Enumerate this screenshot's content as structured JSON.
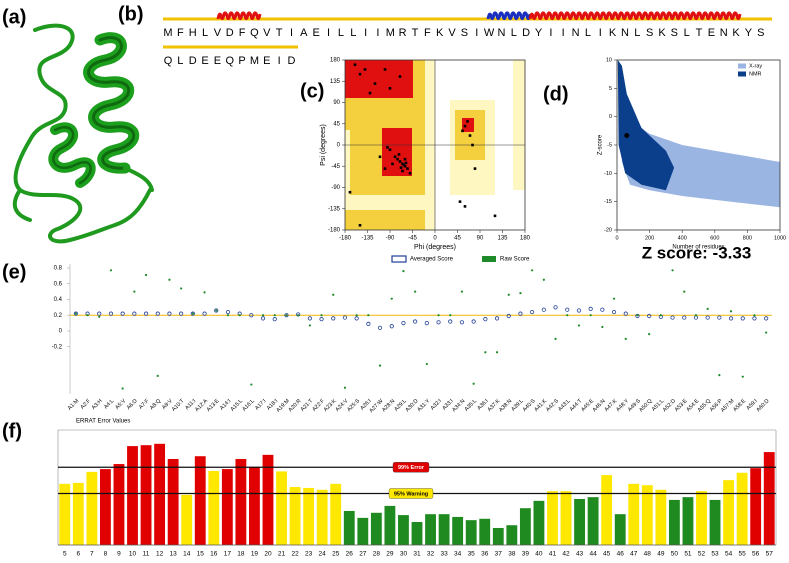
{
  "panel_labels": [
    "(a)",
    "(b)",
    "(c)",
    "(d)",
    "(e)",
    "(f)"
  ],
  "sequence": {
    "line1": [
      "M",
      "F",
      "H",
      "L",
      "V",
      "D",
      "F",
      "Q",
      "V",
      "T",
      "I",
      "A",
      "E",
      "I",
      "L",
      "L",
      "I",
      "I",
      "M",
      "R",
      "T",
      "F",
      "K",
      "V",
      "S",
      "I",
      "W",
      "N",
      "L",
      "D",
      "Y",
      "I",
      "I",
      "N",
      "L",
      "I",
      "K",
      "N",
      "L",
      "S",
      "K",
      "S",
      "L",
      "T",
      "E",
      "N",
      "K",
      "Y",
      "S"
    ],
    "line2": [
      "Q",
      "L",
      "D",
      "E",
      "E",
      "Q",
      "P",
      "M",
      "E",
      "I",
      "D"
    ]
  },
  "chart_data": [
    {
      "type": "scatter",
      "xlabel": "Phi (degrees)",
      "ylabel": "Psi (degrees)",
      "xlim": [
        -180,
        180
      ],
      "ylim": [
        -180,
        180
      ],
      "xticks": [
        -180,
        -135,
        -90,
        -45,
        0,
        45,
        90,
        135,
        180
      ],
      "yticks": [
        -180,
        -135,
        -90,
        -45,
        0,
        45,
        90,
        135,
        180
      ],
      "color": "#000000",
      "points": {
        "x": [
          -65,
          -60,
          -70,
          -75,
          -62,
          -58,
          -68,
          -80,
          -90,
          -55,
          -72,
          -85,
          -95,
          -100,
          -60,
          -65,
          -50,
          -110,
          -120,
          -140,
          -150,
          -90,
          -160,
          -70,
          -130,
          -100,
          60,
          55,
          70,
          65,
          75,
          50,
          60,
          -170,
          -150,
          120,
          80
        ],
        "y": [
          -40,
          -45,
          -35,
          -30,
          -42,
          -38,
          -48,
          -25,
          -10,
          -50,
          -20,
          -40,
          -5,
          -50,
          -30,
          -55,
          -60,
          -25,
          130,
          160,
          150,
          120,
          170,
          145,
          110,
          160,
          40,
          30,
          20,
          50,
          0,
          -120,
          -130,
          -100,
          -170,
          -150,
          -50
        ]
      }
    },
    {
      "type": "scatter",
      "xlabel": "Number of residues",
      "ylabel": "Z-score",
      "annotation": "Z score: -3.33",
      "xlim": [
        0,
        1000
      ],
      "ylim": [
        -20,
        10
      ],
      "xticks": [
        0,
        200,
        400,
        600,
        800,
        1000
      ],
      "yticks": [
        -20,
        -15,
        -10,
        -5,
        0,
        5,
        10
      ],
      "color": "#000000",
      "legend": [
        {
          "name": "X-ray",
          "color": "#9bb5e2"
        },
        {
          "name": "NMR",
          "color": "#0b3f8c"
        }
      ],
      "points": {
        "x": [
          60
        ],
        "y": [
          -3.33
        ]
      }
    },
    {
      "type": "dot_plot",
      "categories": [
        "A1:M",
        "A2:F",
        "A3:H",
        "A4:L",
        "A5:V",
        "A6:D",
        "A7:F",
        "A8:Q",
        "A9:V",
        "A10:T",
        "A11:I",
        "A12:A",
        "A13:E",
        "A14:I",
        "A15:L",
        "A16:L",
        "A17:I",
        "A18:I",
        "A19:M",
        "A20:R",
        "A21:T",
        "A22:F",
        "A23:K",
        "A24:V",
        "A25:S",
        "A26:I",
        "A27:W",
        "A28:N",
        "A29:L",
        "A30:D",
        "A31:Y",
        "A32:I",
        "A33:I",
        "A34:N",
        "A35:L",
        "A36:I",
        "A37:K",
        "A38:N",
        "A39:L",
        "A40:S",
        "A41:K",
        "A42:S",
        "A43:L",
        "A44:T",
        "A45:E",
        "A46:N",
        "A47:K",
        "A48:Y",
        "A49:S",
        "A50:Q",
        "A51:L",
        "A52:D",
        "A53:E",
        "A54:E",
        "A55:Q",
        "A56:P",
        "A57:M",
        "A58:E",
        "A59:I",
        "A60:D"
      ],
      "ylim": [
        -0.8,
        0.85
      ],
      "yticks": [
        -0.2,
        0,
        0.2,
        0.4,
        0.6,
        0.8
      ],
      "reference_line": {
        "value": 0.2,
        "color": "#f2b705"
      },
      "series": [
        {
          "name": "Averaged Score",
          "color": "#1f3f9a",
          "values": [
            0.22,
            0.22,
            0.22,
            0.22,
            0.22,
            0.22,
            0.22,
            0.22,
            0.22,
            0.22,
            0.22,
            0.22,
            0.26,
            0.24,
            0.22,
            0.2,
            0.16,
            0.15,
            0.2,
            0.21,
            0.16,
            0.15,
            0.16,
            0.17,
            0.16,
            0.09,
            0.04,
            0.06,
            0.1,
            0.12,
            0.1,
            0.11,
            0.12,
            0.11,
            0.12,
            0.15,
            0.16,
            0.19,
            0.22,
            0.24,
            0.27,
            0.3,
            0.27,
            0.26,
            0.28,
            0.27,
            0.24,
            0.22,
            0.19,
            0.19,
            0.18,
            0.17,
            0.17,
            0.17,
            0.17,
            0.17,
            0.16,
            0.16,
            0.16,
            0.16
          ]
        },
        {
          "name": "Raw Score",
          "color": "#1e8a2a",
          "values": [
            0.22,
            0.2,
            0.18,
            0.77,
            -0.73,
            0.5,
            0.71,
            -0.57,
            0.65,
            0.54,
            0.22,
            0.49,
            0.26,
            0.2,
            0.2,
            -0.68,
            0.2,
            0.2,
            0.2,
            0.2,
            0.07,
            0.2,
            0.46,
            -0.72,
            0.2,
            0.2,
            -0.44,
            0.41,
            0.76,
            0.5,
            -0.42,
            0.2,
            0.2,
            0.5,
            -0.67,
            -0.27,
            -0.27,
            0.46,
            0.48,
            0.77,
            0.65,
            -0.1,
            0.2,
            0.07,
            0.2,
            0.05,
            0.41,
            -0.1,
            0.2,
            -0.04,
            0.2,
            0.77,
            0.5,
            0.2,
            0.28,
            -0.56,
            0.25,
            -0.58,
            0.2,
            -0.02
          ]
        }
      ]
    },
    {
      "type": "bar",
      "title": "ERRAT Error Values",
      "categories": [
        5,
        6,
        7,
        8,
        9,
        10,
        11,
        12,
        13,
        14,
        15,
        16,
        17,
        18,
        19,
        20,
        21,
        22,
        23,
        24,
        25,
        26,
        27,
        28,
        29,
        30,
        31,
        32,
        33,
        34,
        35,
        36,
        37,
        38,
        39,
        40,
        41,
        42,
        43,
        44,
        45,
        46,
        47,
        48,
        49,
        50,
        51,
        52,
        53,
        54,
        55,
        56,
        57
      ],
      "values": [
        13.3,
        13.5,
        15.9,
        16.5,
        17.6,
        21.5,
        21.7,
        22,
        18.7,
        10.9,
        19.3,
        16.1,
        16.5,
        18.7,
        17,
        19.6,
        16,
        12.6,
        12.4,
        12,
        13.3,
        7.4,
        5.9,
        7,
        8.5,
        6.5,
        5,
        6.7,
        6.7,
        6.1,
        5.4,
        5.7,
        3.7,
        4.3,
        8,
        9.6,
        11.7,
        11.7,
        10,
        10.4,
        15.2,
        6.7,
        13.3,
        13,
        12,
        9.8,
        10.4,
        11.7,
        9.8,
        14.1,
        15.7,
        16.7,
        20.2
      ],
      "colors": [
        "#ffe800",
        "#ffe800",
        "#ffe800",
        "#e00000",
        "#e00000",
        "#e00000",
        "#e00000",
        "#e00000",
        "#e00000",
        "#ffe800",
        "#e00000",
        "#ffe800",
        "#e00000",
        "#e00000",
        "#e00000",
        "#e00000",
        "#ffe800",
        "#ffe800",
        "#ffe800",
        "#ffe800",
        "#ffe800",
        "#1f8a1f",
        "#1f8a1f",
        "#1f8a1f",
        "#1f8a1f",
        "#1f8a1f",
        "#1f8a1f",
        "#1f8a1f",
        "#1f8a1f",
        "#1f8a1f",
        "#1f8a1f",
        "#1f8a1f",
        "#1f8a1f",
        "#1f8a1f",
        "#1f8a1f",
        "#1f8a1f",
        "#ffe800",
        "#ffe800",
        "#1f8a1f",
        "#1f8a1f",
        "#ffe800",
        "#1f8a1f",
        "#ffe800",
        "#ffe800",
        "#ffe800",
        "#1f8a1f",
        "#1f8a1f",
        "#ffe800",
        "#1f8a1f",
        "#ffe800",
        "#ffe800",
        "#e00000",
        "#e00000"
      ],
      "ylim": [
        0,
        25
      ],
      "reference_lines": [
        {
          "label": "99% Error",
          "value": 16.9,
          "color": "#e00000",
          "text_color": "#ffffff"
        },
        {
          "label": "95% Warning",
          "value": 11.2,
          "color": "#ffe800",
          "text_color": "#000000"
        }
      ]
    }
  ]
}
